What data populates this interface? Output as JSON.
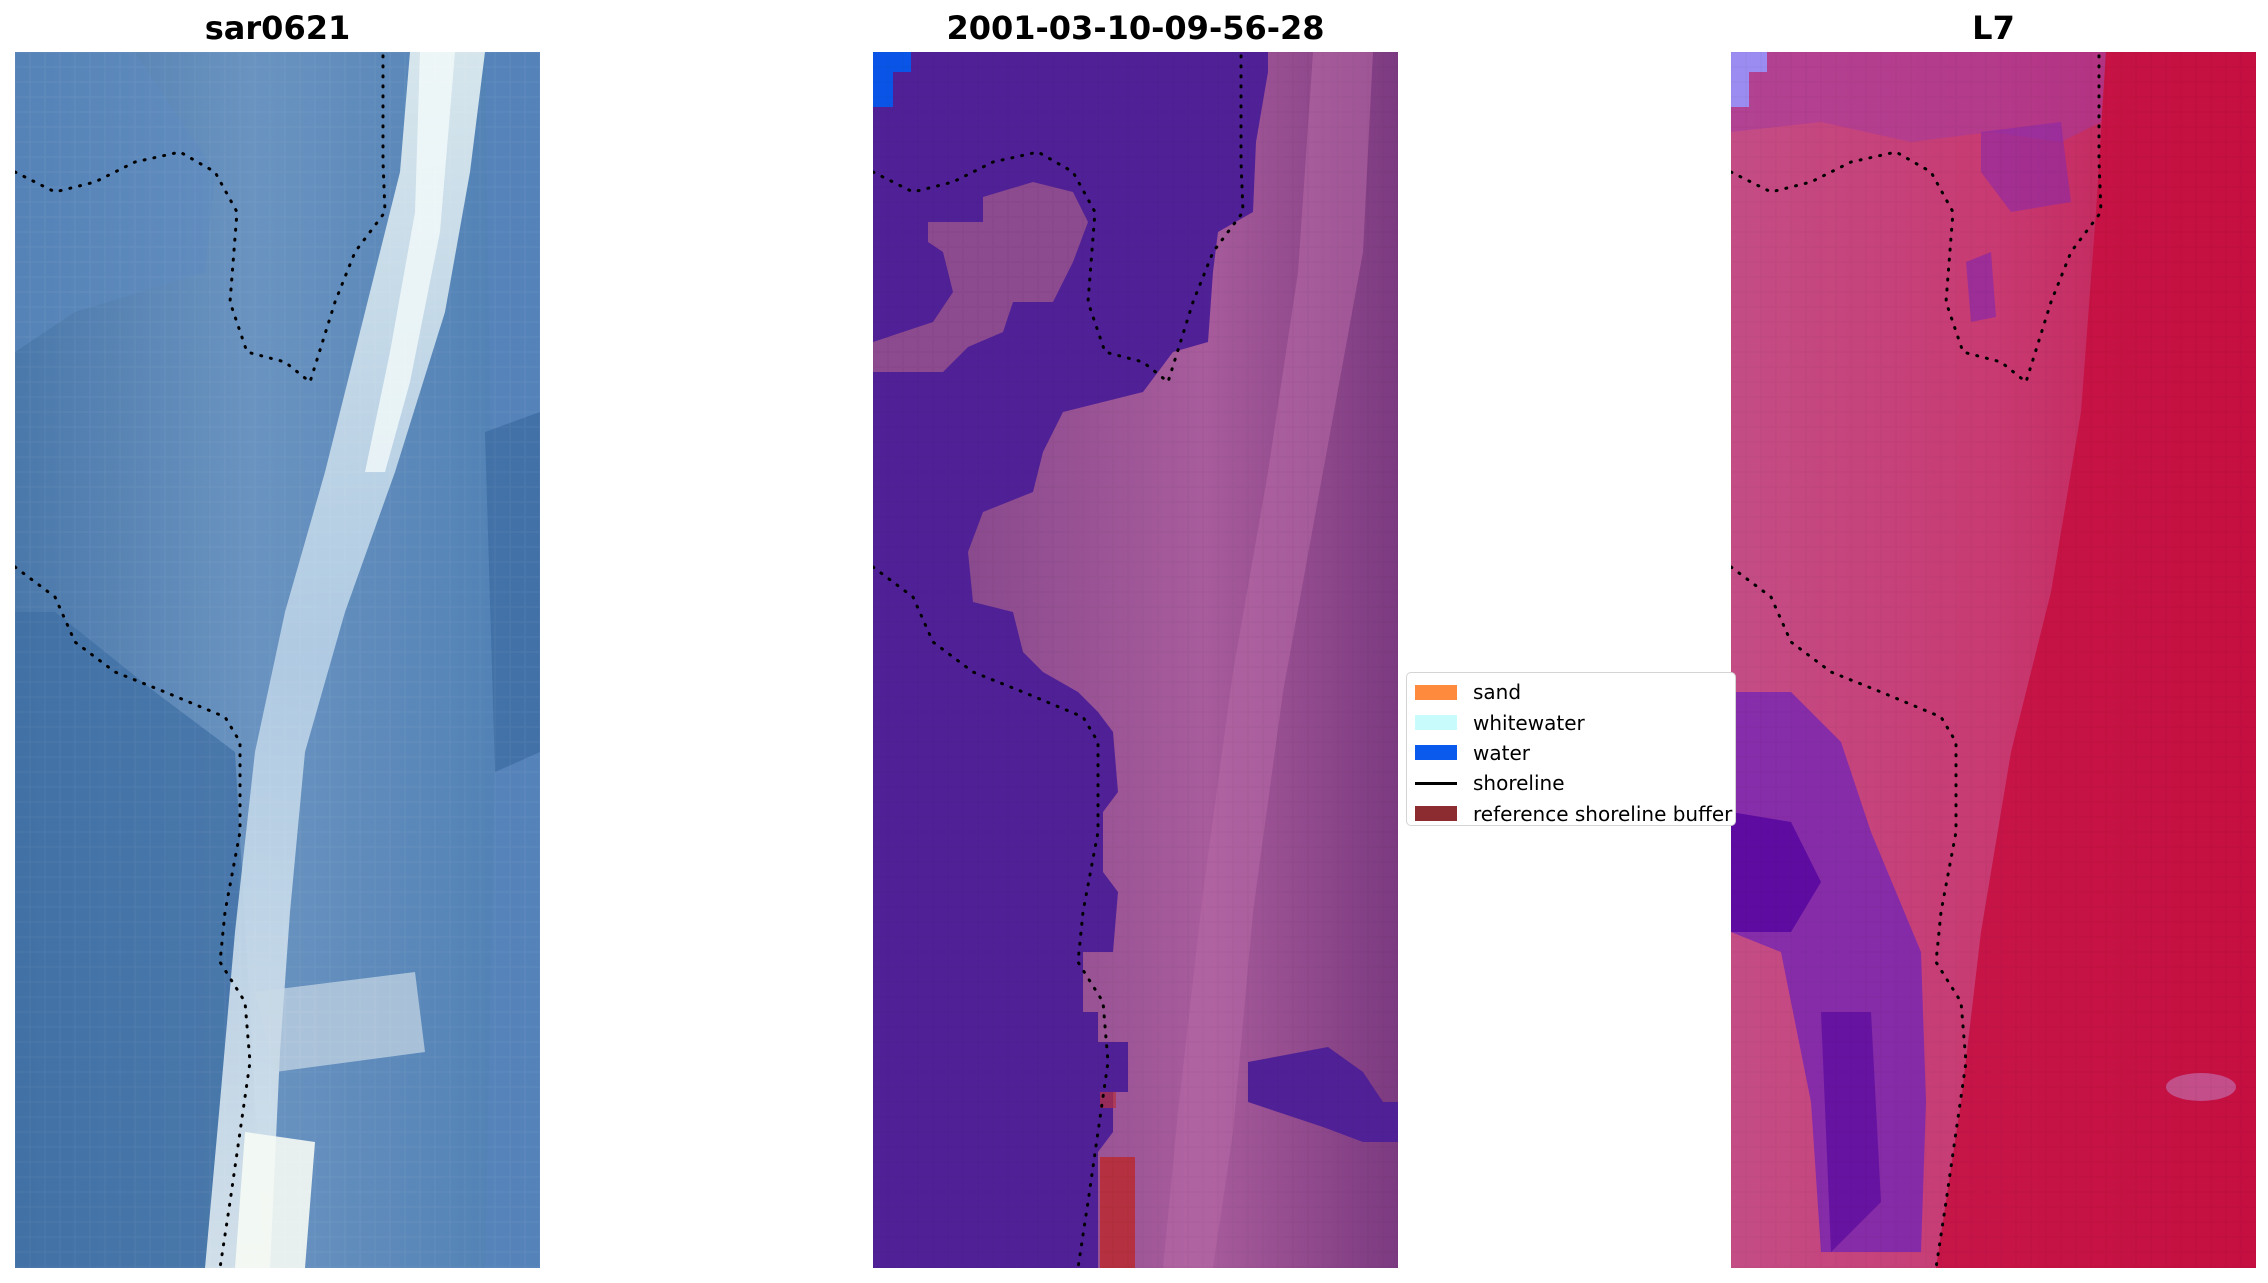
{
  "panels": [
    {
      "title": "sar0621",
      "colors": {
        "deep": "#3f6c9e",
        "mid": "#6f95c2",
        "light": "#a9c4de",
        "bright": "#e8f2f2",
        "shade": "#2f5a8a"
      }
    },
    {
      "title": "2001-03-10-09-56-28",
      "colors": {
        "water": "#502096",
        "land": "#8a4a8e",
        "land_light": "#b0629e",
        "land_dark": "#7a3a80",
        "blue_patch": "#0a55e8",
        "buffer": "#b53040"
      }
    },
    {
      "title": "L7",
      "colors": {
        "pink": "#c44d86",
        "red": "#c20a3e",
        "purple": "#7a28b0",
        "violet": "#5a08a0",
        "light": "#9a8cf0"
      }
    }
  ],
  "legend": {
    "items": [
      {
        "label": "sand",
        "color": "#fd8a3d",
        "kind": "patch"
      },
      {
        "label": "whitewater",
        "color": "#c8fcfc",
        "kind": "patch"
      },
      {
        "label": "water",
        "color": "#0a5aee",
        "kind": "patch"
      },
      {
        "label": "shoreline",
        "color": "#000000",
        "kind": "line"
      },
      {
        "label": "reference shoreline buffer",
        "color": "#8c2c30",
        "kind": "patch"
      }
    ]
  }
}
